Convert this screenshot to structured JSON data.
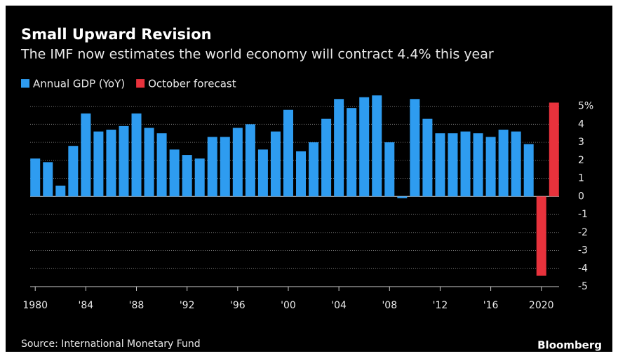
{
  "chart_data": {
    "type": "bar",
    "title": "Small Upward Revision",
    "subtitle": "The IMF now estimates the world economy will contract 4.4% this year",
    "x": [
      1980,
      1981,
      1982,
      1983,
      1984,
      1985,
      1986,
      1987,
      1988,
      1989,
      1990,
      1991,
      1992,
      1993,
      1994,
      1995,
      1996,
      1997,
      1998,
      1999,
      2000,
      2001,
      2002,
      2003,
      2004,
      2005,
      2006,
      2007,
      2008,
      2009,
      2010,
      2011,
      2012,
      2013,
      2014,
      2015,
      2016,
      2017,
      2018,
      2019,
      2020,
      2021
    ],
    "series": [
      {
        "name": "Annual GDP (YoY)",
        "color": "#2e9cf0",
        "values": [
          2.1,
          1.9,
          0.6,
          2.8,
          4.6,
          3.6,
          3.7,
          3.9,
          4.6,
          3.8,
          3.5,
          2.6,
          2.3,
          2.1,
          3.3,
          3.3,
          3.8,
          4.0,
          2.6,
          3.6,
          4.8,
          2.5,
          3.0,
          4.3,
          5.4,
          4.9,
          5.5,
          5.6,
          3.0,
          -0.1,
          5.4,
          4.3,
          3.5,
          3.5,
          3.6,
          3.5,
          3.3,
          3.7,
          3.6,
          2.9,
          null,
          null
        ]
      },
      {
        "name": "October forecast",
        "color": "#e8323c",
        "values": [
          null,
          null,
          null,
          null,
          null,
          null,
          null,
          null,
          null,
          null,
          null,
          null,
          null,
          null,
          null,
          null,
          null,
          null,
          null,
          null,
          null,
          null,
          null,
          null,
          null,
          null,
          null,
          null,
          null,
          null,
          null,
          null,
          null,
          null,
          null,
          null,
          null,
          null,
          null,
          null,
          -4.4,
          5.2
        ]
      }
    ],
    "xlim": [
      1979.6,
      2021.4
    ],
    "xticks": [
      {
        "value": 1980,
        "label": "1980"
      },
      {
        "value": 1984,
        "label": "'84"
      },
      {
        "value": 1988,
        "label": "'88"
      },
      {
        "value": 1992,
        "label": "'92"
      },
      {
        "value": 1996,
        "label": "'96"
      },
      {
        "value": 2000,
        "label": "'00"
      },
      {
        "value": 2004,
        "label": "'04"
      },
      {
        "value": 2008,
        "label": "'08"
      },
      {
        "value": 2012,
        "label": "'12"
      },
      {
        "value": 2016,
        "label": "'16"
      },
      {
        "value": 2020,
        "label": "2020"
      }
    ],
    "ylim": [
      -5,
      5.8
    ],
    "yticks": [
      -5,
      -4,
      -3,
      -2,
      -1,
      0,
      1,
      2,
      3,
      4,
      {
        "value": 5,
        "label": "5%"
      }
    ],
    "grid": true,
    "legend": "top-left",
    "source": "Source: International Monetary Fund",
    "brand": "Bloomberg"
  }
}
